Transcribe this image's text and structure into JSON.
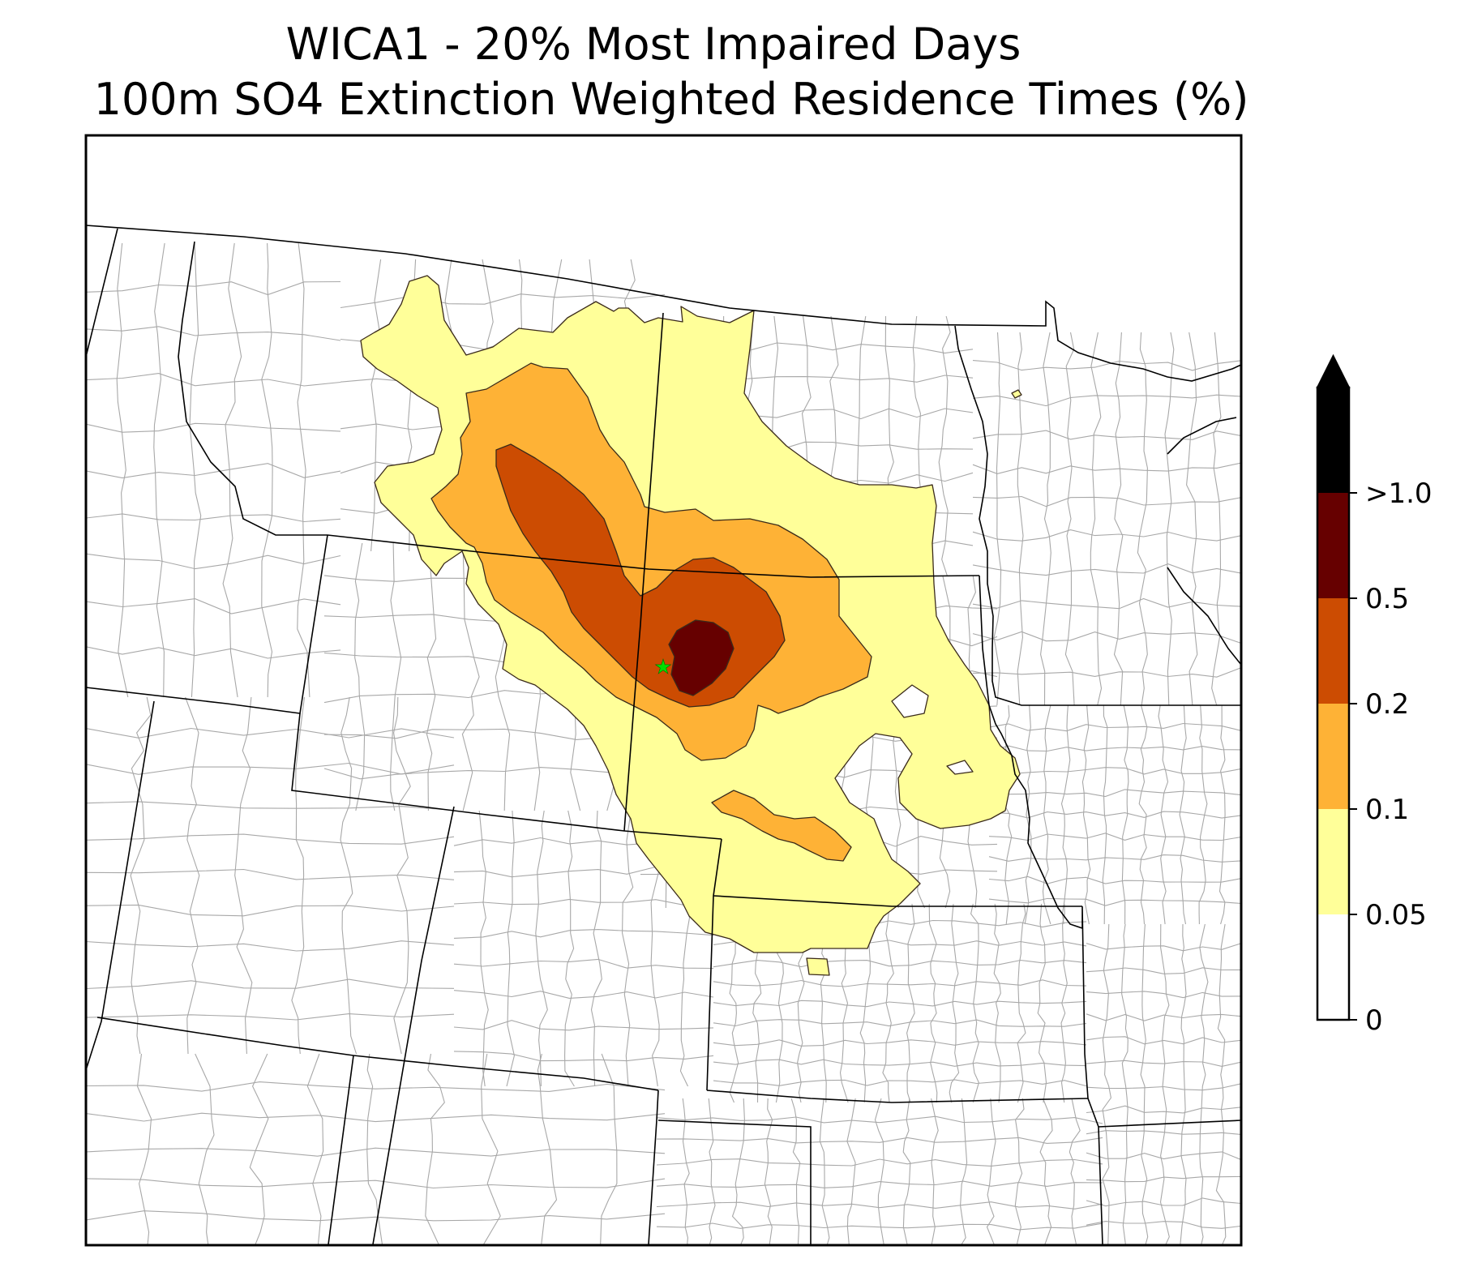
{
  "title": {
    "line1": "WICA1 - 20% Most Impaired Days",
    "line2": "100m SO4 Extinction Weighted Residence Times (%)"
  },
  "map": {
    "receptor_marker": {
      "icon": "star-icon",
      "color": "#00e000"
    },
    "state_border_color": "#000000",
    "county_border_color": "#a8a8a8",
    "contour_fill_colors": [
      "#ffffff",
      "#ffff99",
      "#feb236",
      "#cc4c02",
      "#660000",
      "#000000"
    ]
  },
  "colorbar": {
    "extend": "max",
    "ticks": [
      {
        "label": "0",
        "value": 0
      },
      {
        "label": "0.05",
        "value": 0.05
      },
      {
        "label": "0.1",
        "value": 0.1
      },
      {
        "label": "0.2",
        "value": 0.2
      },
      {
        "label": "0.5",
        "value": 0.5
      },
      {
        "label": ">1.0",
        "value": 1.0
      }
    ],
    "bins": [
      {
        "range": [
          0,
          0.05
        ],
        "color": "#ffffff"
      },
      {
        "range": [
          0.05,
          0.1
        ],
        "color": "#ffff99"
      },
      {
        "range": [
          0.1,
          0.2
        ],
        "color": "#feb236"
      },
      {
        "range": [
          0.2,
          0.5
        ],
        "color": "#cc4c02"
      },
      {
        "range": [
          0.5,
          1.0
        ],
        "color": "#660000"
      },
      {
        "range": [
          1.0,
          null
        ],
        "color": "#000000"
      }
    ]
  }
}
